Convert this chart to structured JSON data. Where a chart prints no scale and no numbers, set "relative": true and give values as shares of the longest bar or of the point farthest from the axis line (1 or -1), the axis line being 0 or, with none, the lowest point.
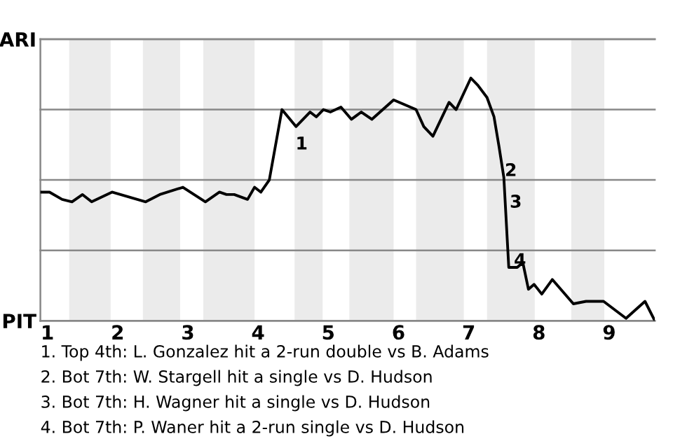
{
  "chart_data": {
    "type": "line",
    "relative": true,
    "x": [
      0.9,
      1.03,
      1.21,
      1.35,
      1.5,
      1.63,
      1.92,
      2.4,
      2.6,
      2.93,
      3.25,
      3.45,
      3.55,
      3.66,
      3.85,
      3.95,
      4.04,
      4.16,
      4.34,
      4.54,
      4.74,
      4.83,
      4.93,
      5.03,
      5.18,
      5.33,
      5.47,
      5.62,
      5.93,
      6.25,
      6.36,
      6.49,
      6.72,
      6.82,
      7.03,
      7.13,
      7.26,
      7.36,
      7.43,
      7.5,
      7.57,
      7.69,
      7.77,
      7.85,
      7.93,
      8.04,
      8.19,
      8.49,
      8.67,
      8.92,
      9.24,
      9.51,
      9.65
    ],
    "series": [
      {
        "color": "#000000",
        "values": [
          0.53,
          0.53,
          0.5,
          0.49,
          0.52,
          0.49,
          0.53,
          0.49,
          0.52,
          0.55,
          0.49,
          0.53,
          0.52,
          0.52,
          0.5,
          0.55,
          0.53,
          0.58,
          0.87,
          0.8,
          0.86,
          0.84,
          0.87,
          0.86,
          0.88,
          0.83,
          0.86,
          0.83,
          0.91,
          0.87,
          0.8,
          0.76,
          0.9,
          0.87,
          1,
          0.97,
          0.92,
          0.84,
          0.72,
          0.59,
          0.22,
          0.22,
          0.24,
          0.13,
          0.15,
          0.11,
          0.17,
          0.07,
          0.08,
          0.08,
          0.01,
          0.08,
          0
        ]
      }
    ],
    "xlim": [
      0.9,
      9.65
    ],
    "xticks": [
      1,
      2,
      3,
      4,
      5,
      6,
      7,
      8,
      9
    ],
    "legend": false,
    "marker": "none",
    "line_style": "solid",
    "ref_lines": [
      {
        "axis": "y",
        "value": 0,
        "label": "PIT",
        "color": "#888888"
      },
      {
        "axis": "y",
        "value": 0.29,
        "color": "#888888"
      },
      {
        "axis": "y",
        "value": 0.58,
        "color": "#888888"
      },
      {
        "axis": "y",
        "value": 0.87,
        "color": "#888888"
      },
      {
        "axis": "y",
        "value": 1.16,
        "label": "ARI",
        "color": "#888888"
      }
    ],
    "bands": [
      {
        "axis": "x",
        "from": 1.31,
        "to": 1.9,
        "color": "#ebebeb"
      },
      {
        "axis": "x",
        "from": 2.36,
        "to": 2.89,
        "color": "#ebebeb"
      },
      {
        "axis": "x",
        "from": 3.22,
        "to": 3.95,
        "color": "#ebebeb"
      },
      {
        "axis": "x",
        "from": 4.52,
        "to": 4.92,
        "color": "#ebebeb"
      },
      {
        "axis": "x",
        "from": 5.3,
        "to": 5.93,
        "color": "#ebebeb"
      },
      {
        "axis": "x",
        "from": 6.25,
        "to": 6.93,
        "color": "#ebebeb"
      },
      {
        "axis": "x",
        "from": 7.26,
        "to": 7.94,
        "color": "#ebebeb"
      },
      {
        "axis": "x",
        "from": 8.46,
        "to": 8.93,
        "color": "#ebebeb"
      }
    ],
    "annotations": [
      {
        "text": "1",
        "x": 4.45,
        "y": 0.83
      },
      {
        "text": "2",
        "x": 7.43,
        "y": 0.72
      },
      {
        "text": "3",
        "x": 7.5,
        "y": 0.59
      },
      {
        "text": "4",
        "x": 7.56,
        "y": 0.35
      },
      "1. Top 4th: L. Gonzalez hit a 2-run double vs B. Adams",
      "2. Bot 7th: W. Stargell hit a single vs D. Hudson",
      "3. Bot 7th: H. Wagner hit a single vs D. Hudson",
      "4. Bot 7th: P. Waner hit a 2-run single vs D. Hudson"
    ]
  }
}
